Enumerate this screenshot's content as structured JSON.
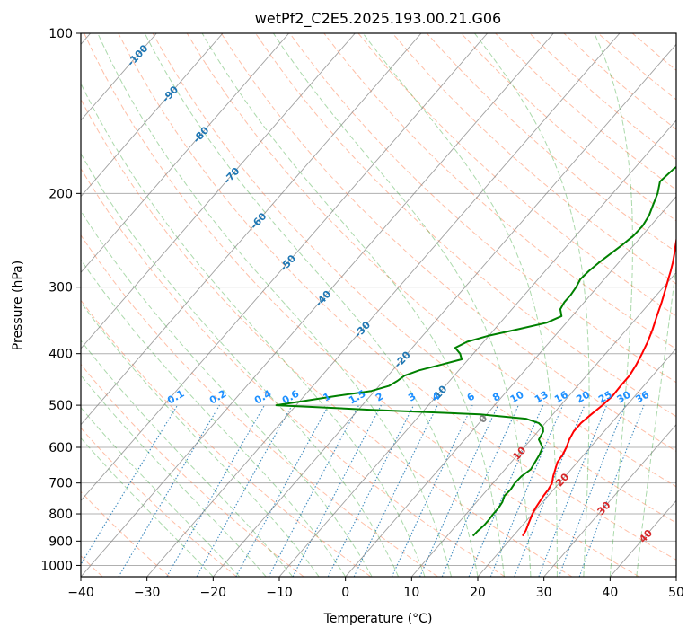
{
  "chart_data": {
    "type": "line",
    "title": "wetPf2_C2E5.2025.193.00.21.G06",
    "xlabel": "Temperature (°C)",
    "ylabel": "Pressure (hPa)",
    "xlim": [
      -40,
      50
    ],
    "ylim": [
      1050,
      100
    ],
    "y_scale": "log",
    "x_ticks": [
      "−40",
      "−30",
      "−20",
      "−10",
      "0",
      "10",
      "20",
      "30",
      "40",
      "50"
    ],
    "y_ticks": [
      {
        "p": 100,
        "label": "100"
      },
      {
        "p": 200,
        "label": "200"
      },
      {
        "p": 300,
        "label": "300"
      },
      {
        "p": 400,
        "label": "400"
      },
      {
        "p": 500,
        "label": "500"
      },
      {
        "p": 600,
        "label": "600"
      },
      {
        "p": 700,
        "label": "700"
      },
      {
        "p": 800,
        "label": "800"
      },
      {
        "p": 900,
        "label": "900"
      },
      {
        "p": 1000,
        "label": "1000"
      }
    ],
    "grid": true,
    "colors": {
      "temperature": "#ff0000",
      "dewpoint": "#008000",
      "isotherm": "#808080",
      "dry_adiabat": "#ff7f50",
      "moist_adiabat": "#2ca02c",
      "mixing_ratio": "#1f77b4",
      "mixing_label": "#1e90ff",
      "isotherm_label": "#1f77b4",
      "warm_label": "#d62728"
    },
    "isotherm_labels": [
      {
        "t": -100,
        "p": 110,
        "text": "-100"
      },
      {
        "t": -90,
        "p": 130,
        "text": "-90"
      },
      {
        "t": -80,
        "p": 155,
        "text": "-80"
      },
      {
        "t": -70,
        "p": 185,
        "text": "-70"
      },
      {
        "t": -60,
        "p": 225,
        "text": "-60"
      },
      {
        "t": -50,
        "p": 270,
        "text": "-50"
      },
      {
        "t": -40,
        "p": 315,
        "text": "-40"
      },
      {
        "t": -30,
        "p": 360,
        "text": "-30"
      },
      {
        "t": -20,
        "p": 410,
        "text": "-20"
      },
      {
        "t": -10,
        "p": 475,
        "text": "-10"
      },
      {
        "t": 0,
        "p": 530,
        "text": "0"
      },
      {
        "t": 10,
        "p": 615,
        "text": "10"
      },
      {
        "t": 20,
        "p": 690,
        "text": "20"
      },
      {
        "t": 30,
        "p": 780,
        "text": "30"
      },
      {
        "t": 40,
        "p": 880,
        "text": "40"
      }
    ],
    "mixing_ratio_labels": [
      "0.1",
      "0.2",
      "0.4",
      "0.6",
      "1",
      "1.5",
      "2",
      "3",
      "4",
      "6",
      "8",
      "10",
      "13",
      "16",
      "20",
      "25",
      "30",
      "36"
    ],
    "series": [
      {
        "key": "temperature",
        "pressure": [
          100,
          105,
          110,
          120,
          130,
          140,
          150,
          160,
          170,
          180,
          190,
          200,
          210,
          220,
          230,
          240,
          250,
          260,
          270,
          280,
          290,
          300,
          320,
          340,
          360,
          380,
          400,
          420,
          440,
          460,
          480,
          500,
          520,
          540,
          560,
          580,
          600,
          620,
          640,
          660,
          680,
          700,
          720,
          740,
          760,
          780,
          800,
          820,
          840,
          860,
          880
        ],
        "x": [
          6.2,
          4.5,
          3.3,
          2.5,
          2.0,
          1.6,
          1.2,
          1.0,
          1.3,
          1.6,
          1.5,
          1.6,
          2.4,
          3.4,
          4.3,
          5.3,
          6.3,
          7.3,
          8.2,
          9.0,
          9.7,
          10.4,
          11.7,
          12.8,
          13.9,
          14.8,
          15.5,
          16.1,
          16.5,
          16.5,
          16.6,
          16.3,
          15.8,
          15.4,
          15.4,
          15.8,
          16.4,
          16.8,
          17.0,
          17.6,
          18.2,
          18.9,
          19.2,
          19.3,
          19.5,
          19.7,
          20.0,
          20.4,
          20.8,
          21.2,
          21.4
        ]
      },
      {
        "key": "dewpoint",
        "pressure": [
          100,
          110,
          120,
          130,
          140,
          150,
          160,
          170,
          180,
          190,
          200,
          210,
          220,
          230,
          240,
          250,
          260,
          270,
          280,
          290,
          300,
          310,
          320,
          330,
          340,
          350,
          360,
          370,
          380,
          390,
          400,
          410,
          420,
          430,
          440,
          450,
          460,
          470,
          480,
          490,
          500,
          510,
          520,
          530,
          540,
          550,
          560,
          580,
          600,
          620,
          640,
          660,
          680,
          700,
          720,
          740,
          760,
          780,
          800,
          820,
          840,
          860,
          880
        ],
        "x": [
          2.0,
          0.4,
          -1.4,
          -2.6,
          -3.2,
          -2.9,
          -2.6,
          -3.0,
          -4.0,
          -4.4,
          -3.2,
          -2.4,
          -1.6,
          -1.2,
          -1.3,
          -1.8,
          -2.4,
          -3.0,
          -3.4,
          -3.6,
          -3.2,
          -3.0,
          -3.0,
          -2.7,
          -1.6,
          -3.0,
          -6.5,
          -10.0,
          -12.5,
          -13.5,
          -12.0,
          -11.0,
          -13.5,
          -16.0,
          -17.5,
          -17.9,
          -18.5,
          -20.5,
          -25.0,
          -29.0,
          -33.0,
          -18.0,
          -1.0,
          6.5,
          9.0,
          10.2,
          10.8,
          11.2,
          12.8,
          13.3,
          13.6,
          13.9,
          13.4,
          13.3,
          13.5,
          13.4,
          13.9,
          14.1,
          14.1,
          14.2,
          14.2,
          14.0,
          13.9
        ]
      }
    ]
  }
}
